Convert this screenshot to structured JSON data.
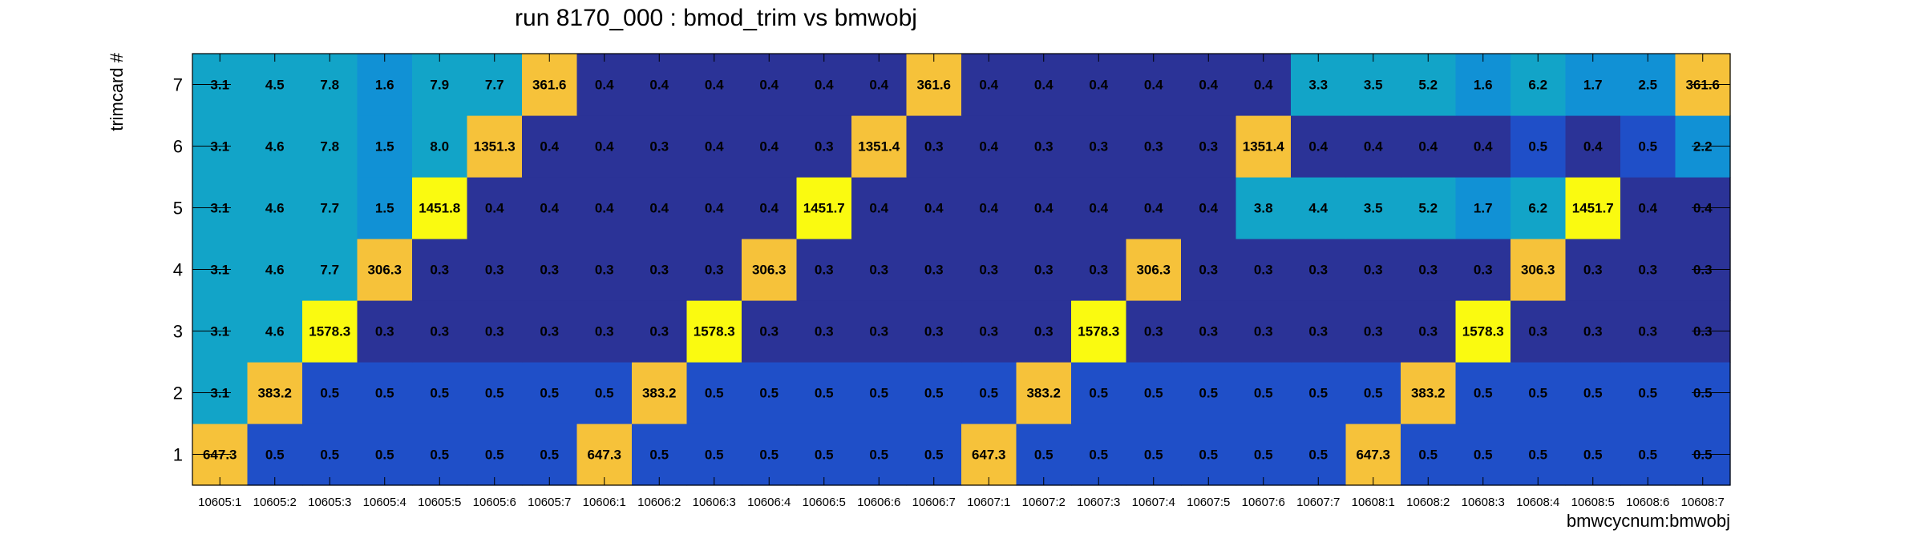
{
  "chart_data": {
    "type": "heatmap",
    "title": "run 8170_000 : bmod_trim vs bmwobj",
    "xlabel": "bmwcycnum:bmwobj",
    "ylabel": "trimcard #",
    "x_categories": [
      "10605:1",
      "10605:2",
      "10605:3",
      "10605:4",
      "10605:5",
      "10605:6",
      "10605:7",
      "10606:1",
      "10606:2",
      "10606:3",
      "10606:4",
      "10606:5",
      "10606:6",
      "10606:7",
      "10607:1",
      "10607:2",
      "10607:3",
      "10607:4",
      "10607:5",
      "10607:6",
      "10607:7",
      "10608:1",
      "10608:2",
      "10608:3",
      "10608:4",
      "10608:5",
      "10608:6",
      "10608:7"
    ],
    "y_categories": [
      "1",
      "2",
      "3",
      "4",
      "5",
      "6",
      "7"
    ],
    "values": [
      [
        647.3,
        0.5,
        0.5,
        0.5,
        0.5,
        0.5,
        0.5,
        647.3,
        0.5,
        0.5,
        0.5,
        0.5,
        0.5,
        0.5,
        647.3,
        0.5,
        0.5,
        0.5,
        0.5,
        0.5,
        0.5,
        647.3,
        0.5,
        0.5,
        0.5,
        0.5,
        0.5,
        0.5
      ],
      [
        3.1,
        383.2,
        0.5,
        0.5,
        0.5,
        0.5,
        0.5,
        0.5,
        383.2,
        0.5,
        0.5,
        0.5,
        0.5,
        0.5,
        0.5,
        383.2,
        0.5,
        0.5,
        0.5,
        0.5,
        0.5,
        0.5,
        383.2,
        0.5,
        0.5,
        0.5,
        0.5,
        0.5
      ],
      [
        3.1,
        4.6,
        1578.3,
        0.3,
        0.3,
        0.3,
        0.3,
        0.3,
        0.3,
        1578.3,
        0.3,
        0.3,
        0.3,
        0.3,
        0.3,
        0.3,
        1578.3,
        0.3,
        0.3,
        0.3,
        0.3,
        0.3,
        0.3,
        1578.3,
        0.3,
        0.3,
        0.3,
        0.3
      ],
      [
        3.1,
        4.6,
        7.7,
        306.3,
        0.3,
        0.3,
        0.3,
        0.3,
        0.3,
        0.3,
        306.3,
        0.3,
        0.3,
        0.3,
        0.3,
        0.3,
        0.3,
        306.3,
        0.3,
        0.3,
        0.3,
        0.3,
        0.3,
        0.3,
        306.3,
        0.3,
        0.3,
        0.3
      ],
      [
        3.1,
        4.6,
        7.7,
        1.5,
        1451.8,
        0.4,
        0.4,
        0.4,
        0.4,
        0.4,
        0.4,
        1451.7,
        0.4,
        0.4,
        0.4,
        0.4,
        0.4,
        0.4,
        0.4,
        3.8,
        4.4,
        3.5,
        5.2,
        1.7,
        6.2,
        1451.7,
        0.4,
        0.4
      ],
      [
        3.1,
        4.6,
        7.8,
        1.5,
        8.0,
        1351.3,
        0.4,
        0.4,
        0.3,
        0.4,
        0.4,
        0.3,
        1351.4,
        0.3,
        0.4,
        0.3,
        0.3,
        0.3,
        0.3,
        1351.4,
        0.4,
        0.4,
        0.4,
        0.4,
        0.5,
        0.4,
        0.5,
        2.2
      ],
      [
        3.1,
        4.5,
        7.8,
        1.6,
        7.9,
        7.7,
        361.6,
        0.4,
        0.4,
        0.4,
        0.4,
        0.4,
        0.4,
        361.6,
        0.4,
        0.4,
        0.4,
        0.4,
        0.4,
        0.4,
        3.3,
        3.5,
        5.2,
        1.6,
        6.2,
        1.7,
        2.5,
        361.6
      ]
    ],
    "palette": [
      "#2b3397",
      "#1f4fc8",
      "#146fd8",
      "#1191d5",
      "#12a4c8",
      "#f6c23a",
      "#fafa10"
    ],
    "grid": false,
    "legend": "none"
  }
}
